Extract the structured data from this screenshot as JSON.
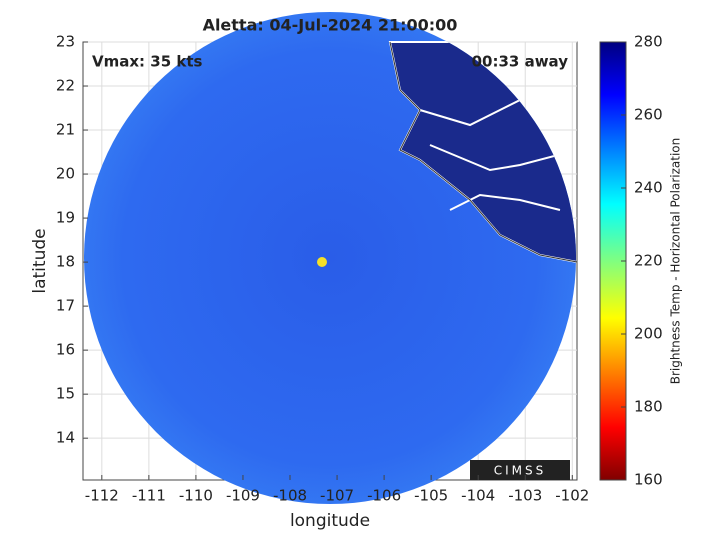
{
  "chart_data": {
    "type": "image",
    "title": "Aletta: 04-Jul-2024 21:00:00",
    "annotations": [
      "Vmax: 35 kts",
      "00:33 away"
    ],
    "logo": "CIMSS",
    "x_label": "longitude",
    "y_label": "latitude",
    "xlim": [
      -112.4,
      -101.9
    ],
    "xticks": [
      -112,
      -111,
      -110,
      -109,
      -108,
      -107,
      -106,
      -105,
      -104,
      -103,
      -102
    ],
    "ylim": [
      13.05,
      23
    ],
    "yticks": [
      14,
      15,
      16,
      17,
      18,
      19,
      20,
      21,
      22,
      23
    ],
    "grid": true,
    "colorbar": {
      "label": "Brightness Temp - Horizontal Polarization",
      "lim": [
        160,
        280
      ],
      "ticks": [
        160,
        180,
        200,
        220,
        240,
        260,
        280
      ]
    }
  }
}
